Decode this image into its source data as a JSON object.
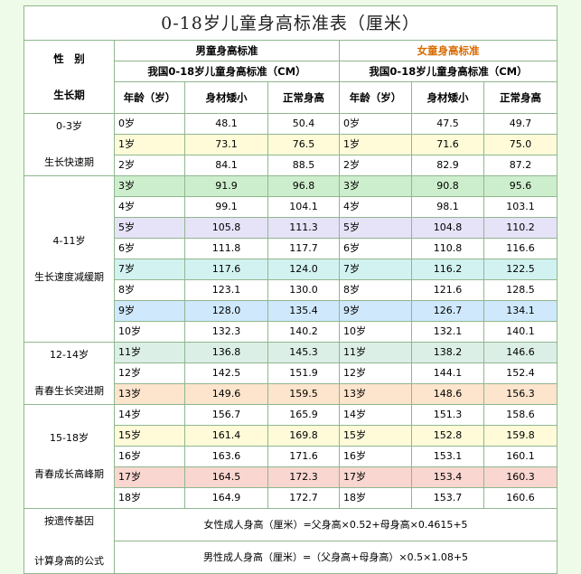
{
  "title": "0-18岁儿童身高标准表（厘米）",
  "header": {
    "side_top": "性　别",
    "side_bottom": "生长期",
    "boys": "男童身高标准",
    "girls": "女童身高标准",
    "boys_sub": "我国0-18岁儿童身高标准（CM）",
    "girls_sub": "我国0-18岁儿童身高标准（CM）",
    "col_age": "年龄（岁）",
    "col_short": "身材矮小",
    "col_normal": "正常身高"
  },
  "stages": [
    {
      "range": "0-3岁",
      "name": "生长快速期"
    },
    {
      "range": "4-11岁",
      "name": "生长速度减缓期"
    },
    {
      "range": "12-14岁",
      "name": "青春生长突进期"
    },
    {
      "range": "15-18岁",
      "name": "青春成长高峰期"
    }
  ],
  "rows": [
    {
      "b_age": "0岁",
      "b_short": "48.1",
      "b_normal": "50.4",
      "g_age": "0岁",
      "g_short": "47.5",
      "g_normal": "49.7"
    },
    {
      "b_age": "1岁",
      "b_short": "73.1",
      "b_normal": "76.5",
      "g_age": "1岁",
      "g_short": "71.6",
      "g_normal": "75.0"
    },
    {
      "b_age": "2岁",
      "b_short": "84.1",
      "b_normal": "88.5",
      "g_age": "2岁",
      "g_short": "82.9",
      "g_normal": "87.2"
    },
    {
      "b_age": "3岁",
      "b_short": "91.9",
      "b_normal": "96.8",
      "g_age": "3岁",
      "g_short": "90.8",
      "g_normal": "95.6"
    },
    {
      "b_age": "4岁",
      "b_short": "99.1",
      "b_normal": "104.1",
      "g_age": "4岁",
      "g_short": "98.1",
      "g_normal": "103.1"
    },
    {
      "b_age": "5岁",
      "b_short": "105.8",
      "b_normal": "111.3",
      "g_age": "5岁",
      "g_short": "104.8",
      "g_normal": "110.2"
    },
    {
      "b_age": "6岁",
      "b_short": "111.8",
      "b_normal": "117.7",
      "g_age": "6岁",
      "g_short": "110.8",
      "g_normal": "116.6"
    },
    {
      "b_age": "7岁",
      "b_short": "117.6",
      "b_normal": "124.0",
      "g_age": "7岁",
      "g_short": "116.2",
      "g_normal": "122.5"
    },
    {
      "b_age": "8岁",
      "b_short": "123.1",
      "b_normal": "130.0",
      "g_age": "8岁",
      "g_short": "121.6",
      "g_normal": "128.5"
    },
    {
      "b_age": "9岁",
      "b_short": "128.0",
      "b_normal": "135.4",
      "g_age": "9岁",
      "g_short": "126.7",
      "g_normal": "134.1"
    },
    {
      "b_age": "10岁",
      "b_short": "132.3",
      "b_normal": "140.2",
      "g_age": "10岁",
      "g_short": "132.1",
      "g_normal": "140.1"
    },
    {
      "b_age": "11岁",
      "b_short": "136.8",
      "b_normal": "145.3",
      "g_age": "11岁",
      "g_short": "138.2",
      "g_normal": "146.6"
    },
    {
      "b_age": "12岁",
      "b_short": "142.5",
      "b_normal": "151.9",
      "g_age": "12岁",
      "g_short": "144.1",
      "g_normal": "152.4"
    },
    {
      "b_age": "13岁",
      "b_short": "149.6",
      "b_normal": "159.5",
      "g_age": "13岁",
      "g_short": "148.6",
      "g_normal": "156.3"
    },
    {
      "b_age": "14岁",
      "b_short": "156.7",
      "b_normal": "165.9",
      "g_age": "14岁",
      "g_short": "151.3",
      "g_normal": "158.6"
    },
    {
      "b_age": "15岁",
      "b_short": "161.4",
      "b_normal": "169.8",
      "g_age": "15岁",
      "g_short": "152.8",
      "g_normal": "159.8"
    },
    {
      "b_age": "16岁",
      "b_short": "163.6",
      "b_normal": "171.6",
      "g_age": "16岁",
      "g_short": "153.1",
      "g_normal": "160.1"
    },
    {
      "b_age": "17岁",
      "b_short": "164.5",
      "b_normal": "172.3",
      "g_age": "17岁",
      "g_short": "153.4",
      "g_normal": "160.3"
    },
    {
      "b_age": "18岁",
      "b_short": "164.9",
      "b_normal": "172.7",
      "g_age": "18岁",
      "g_short": "153.7",
      "g_normal": "160.6"
    }
  ],
  "genetic": {
    "label_top": "按遗传基因",
    "label_bottom": "计算身高的公式",
    "female_formula": "女性成人身高（厘米）=父身高×0.52+母身高×0.4615+5",
    "male_formula": "男性成人身高（厘米）=（父身高+母身高）×0.5×1.08+5"
  },
  "colors": {
    "girls_header": "#d86a00",
    "border": "#8fb78f",
    "page_bg": "#eefbe8"
  }
}
